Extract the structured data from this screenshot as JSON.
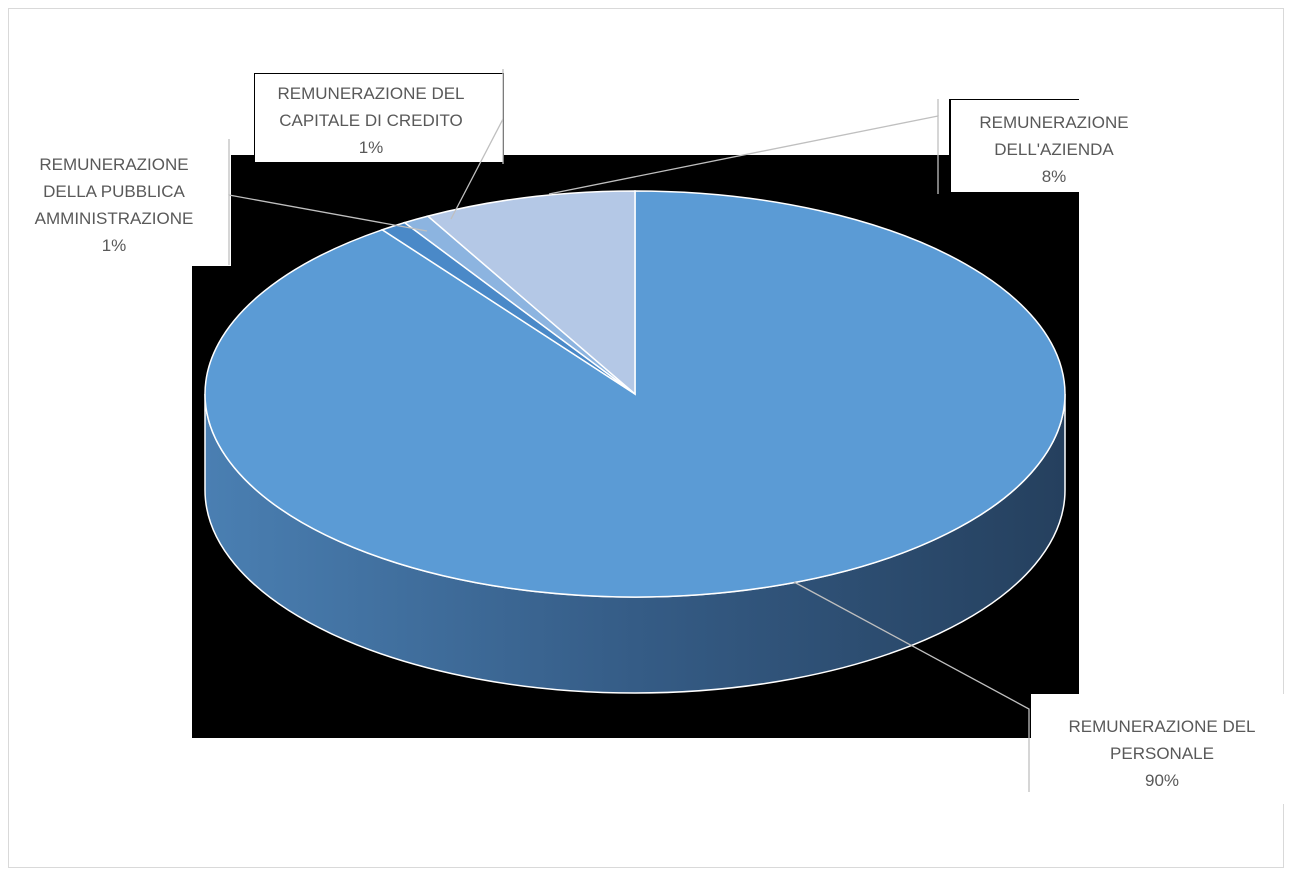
{
  "chart_data": {
    "type": "pie",
    "style": "3d",
    "title": "",
    "legend": "none",
    "slices": [
      {
        "label": "REMUNERAZIONE DEL PERSONALE",
        "value": 90,
        "value_label": "90%",
        "color": "#5b9bd5"
      },
      {
        "label": "REMUNERAZIONE DELLA PUBBLICA AMMINISTRAZIONE",
        "value": 1,
        "value_label": "1%",
        "color": "#4a89c8"
      },
      {
        "label": "REMUNERAZIONE DEL CAPITALE DI CREDITO",
        "value": 1,
        "value_label": "1%",
        "color": "#8cb4e0"
      },
      {
        "label": "REMUNERAZIONE DELL'AZIENDA",
        "value": 8,
        "value_label": "8%",
        "color": "#b4c8e6"
      }
    ],
    "label_lines": [
      [
        "REMUNERAZIONE DEL",
        "PERSONALE",
        "90%"
      ],
      [
        "REMUNERAZIONE",
        "DELLA PUBBLICA",
        "AMMINISTRAZIONE",
        "1%"
      ],
      [
        "REMUNERAZIONE DEL",
        "CAPITALE DI CREDITO",
        "1%"
      ],
      [
        "REMUNERAZIONE",
        "DELL'AZIENDA",
        "8%"
      ]
    ],
    "side_color": "#3a6a98"
  }
}
